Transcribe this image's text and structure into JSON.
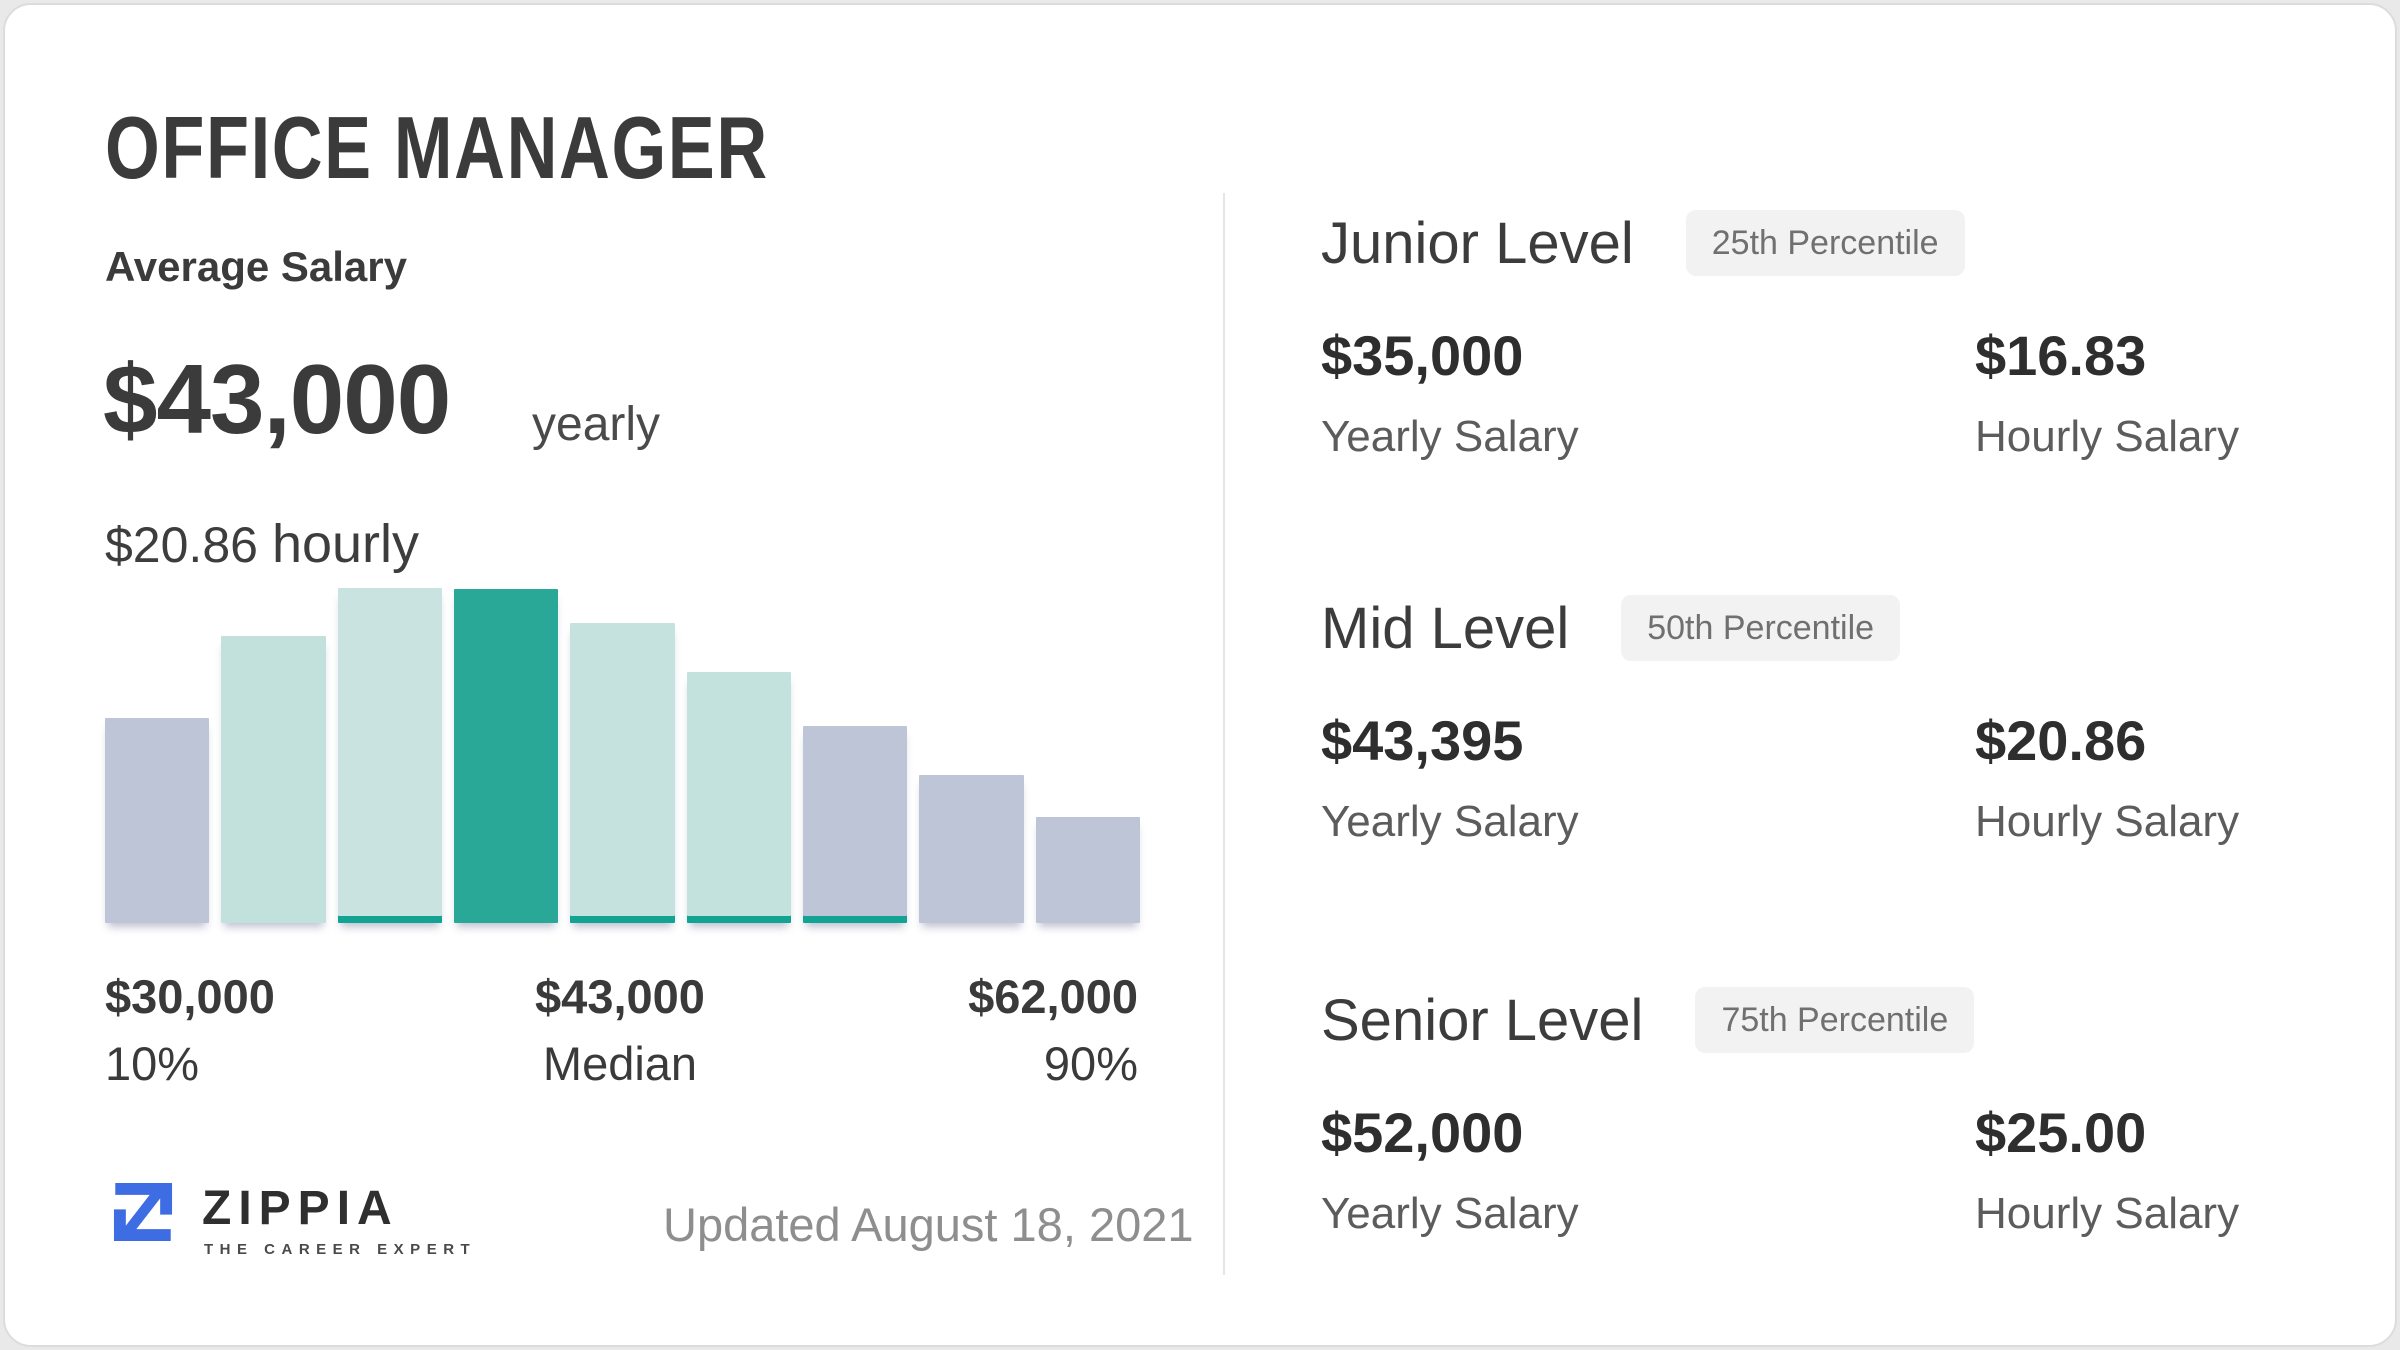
{
  "header": {
    "title": "OFFICE MANAGER"
  },
  "average": {
    "label": "Average Salary",
    "yearly_value": "$43,000",
    "yearly_unit": "yearly",
    "hourly_value": "$20.86",
    "hourly_unit": "hourly"
  },
  "chart_data": {
    "type": "bar",
    "description": "Salary distribution histogram from 10th to 90th percentile",
    "x_axis": {
      "left_label": "$30,000",
      "left_sub": "10%",
      "center_label": "$43,000",
      "center_sub": "Median",
      "right_label": "$62,000",
      "right_sub": "90%"
    },
    "axis_range": {
      "min_salary": 30000,
      "median_salary": 43000,
      "max_salary": 62000
    },
    "bars": [
      {
        "value": 205,
        "color": "#bdc5d6",
        "strip": false
      },
      {
        "value": 287,
        "color": "#c2e1dd",
        "strip": false
      },
      {
        "value": 335,
        "color": "#c9e4e0",
        "strip": true
      },
      {
        "value": 334,
        "color": "#29a897",
        "strip": false
      },
      {
        "value": 300,
        "color": "#c5e2de",
        "strip": true
      },
      {
        "value": 251,
        "color": "#c3e1dd",
        "strip": true
      },
      {
        "value": 197,
        "color": "#bdc5d6",
        "strip": true
      },
      {
        "value": 148,
        "color": "#bdc5d6",
        "strip": false
      },
      {
        "value": 106,
        "color": "#bdc5d6",
        "strip": false
      }
    ],
    "colors": {
      "gray_bar": "#bdc5d6",
      "light_teal_bar": "#c5e2de",
      "teal_median_bar": "#29a897",
      "strip": "#12a392"
    }
  },
  "levels": [
    {
      "title": "Junior Level",
      "badge": "25th Percentile",
      "yearly_value": "$35,000",
      "yearly_label": "Yearly Salary",
      "hourly_value": "$16.83",
      "hourly_label": "Hourly Salary"
    },
    {
      "title": "Mid Level",
      "badge": "50th Percentile",
      "yearly_value": "$43,395",
      "yearly_label": "Yearly Salary",
      "hourly_value": "$20.86",
      "hourly_label": "Hourly Salary"
    },
    {
      "title": "Senior Level",
      "badge": "75th Percentile",
      "yearly_value": "$52,000",
      "yearly_label": "Yearly Salary",
      "hourly_value": "$25.00",
      "hourly_label": "Hourly Salary"
    }
  ],
  "footer": {
    "brand": "ZIPPIA",
    "tagline": "THE CAREER EXPERT",
    "updated": "Updated August 18, 2021",
    "brand_color": "#3e6ce2"
  }
}
